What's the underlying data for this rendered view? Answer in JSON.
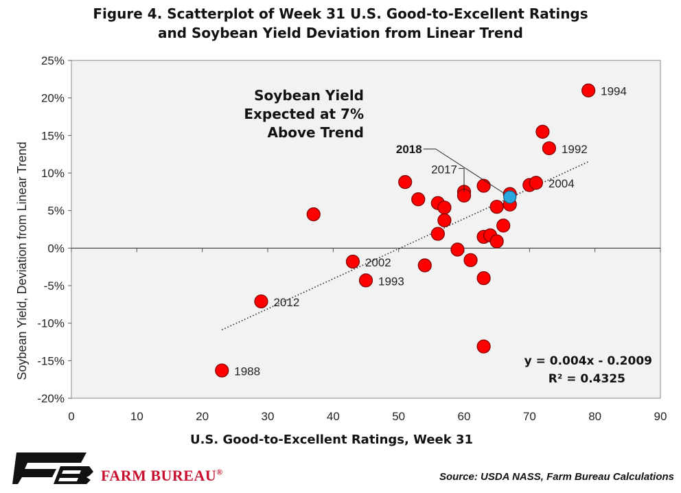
{
  "title_lines": [
    "Figure 4. Scatterplot of Week 31 U.S. Good-to-Excellent Ratings",
    "and Soybean Yield Deviation from Linear Trend"
  ],
  "source": "Source: USDA NASS, Farm Bureau Calculations",
  "brand": {
    "name": "FARM BUREAU",
    "mark": "®",
    "color": "#c8102e"
  },
  "chart_data": {
    "type": "scatter",
    "xlabel": "U.S. Good-to-Excellent Ratings, Week 31",
    "ylabel": "Soybean Yield, Deviation from Linear Trend",
    "xlim": [
      0,
      90
    ],
    "ylim": [
      -0.2,
      0.25
    ],
    "xticks": [
      0,
      10,
      20,
      30,
      40,
      50,
      60,
      70,
      80,
      90
    ],
    "yticks": [
      -0.2,
      -0.15,
      -0.1,
      -0.05,
      0,
      0.05,
      0.1,
      0.15,
      0.2,
      0.25
    ],
    "ytick_labels": [
      "-20%",
      "-15%",
      "-10%",
      "-5%",
      "0%",
      "5%",
      "10%",
      "15%",
      "20%",
      "25%"
    ],
    "plot_background": "#f2f2f2",
    "point_color": "#ff0000",
    "highlight_color": "#29a8e0",
    "points": [
      {
        "x": 79,
        "y": 0.21,
        "label": "1994"
      },
      {
        "x": 72,
        "y": 0.155
      },
      {
        "x": 73,
        "y": 0.133,
        "label": "1992"
      },
      {
        "x": 51,
        "y": 0.088
      },
      {
        "x": 60,
        "y": 0.075
      },
      {
        "x": 60,
        "y": 0.07
      },
      {
        "x": 63,
        "y": 0.083
      },
      {
        "x": 67,
        "y": 0.072
      },
      {
        "x": 70,
        "y": 0.084
      },
      {
        "x": 71,
        "y": 0.087,
        "label": "2004"
      },
      {
        "x": 53,
        "y": 0.065
      },
      {
        "x": 56,
        "y": 0.06
      },
      {
        "x": 57,
        "y": 0.054
      },
      {
        "x": 65,
        "y": 0.055
      },
      {
        "x": 67,
        "y": 0.058
      },
      {
        "x": 37,
        "y": 0.045
      },
      {
        "x": 57,
        "y": 0.037
      },
      {
        "x": 66,
        "y": 0.03
      },
      {
        "x": 56,
        "y": 0.019
      },
      {
        "x": 63,
        "y": 0.015
      },
      {
        "x": 64,
        "y": 0.017
      },
      {
        "x": 65,
        "y": 0.009
      },
      {
        "x": 59,
        "y": -0.002
      },
      {
        "x": 61,
        "y": -0.016
      },
      {
        "x": 43,
        "y": -0.018,
        "label": "2002"
      },
      {
        "x": 54,
        "y": -0.023
      },
      {
        "x": 45,
        "y": -0.043,
        "label": "1993"
      },
      {
        "x": 63,
        "y": -0.04
      },
      {
        "x": 29,
        "y": -0.071,
        "label": "2012"
      },
      {
        "x": 63,
        "y": -0.131
      },
      {
        "x": 23,
        "y": -0.163,
        "label": "1988"
      }
    ],
    "label_2017": {
      "x": 60,
      "y": 0.075,
      "text": "2017"
    },
    "highlight": {
      "x": 67,
      "y": 0.068,
      "label": "2018"
    },
    "trendline": {
      "slope": 0.004,
      "intercept": -0.2009,
      "x_range": [
        23,
        79
      ],
      "style": "dotted"
    },
    "equation": "y = 0.004x - 0.2009",
    "r_squared": "R² = 0.4325",
    "annotation_lines": [
      "Soybean Yield",
      "Expected at 7%",
      "Above Trend"
    ]
  }
}
